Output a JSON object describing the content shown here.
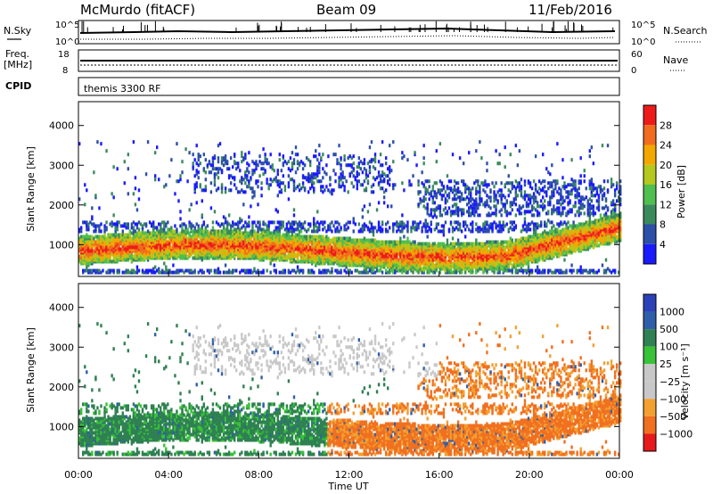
{
  "header": {
    "station": "McMurdo (fitACF)",
    "beam": "Beam 09",
    "date": "11/Feb/2016"
  },
  "panel_noise": {
    "left_label": "N.Sky",
    "right_label": "N.Search",
    "left_ticks": [
      "10^5",
      "10^0"
    ],
    "right_ticks": [
      "10^5",
      "10^0"
    ]
  },
  "panel_freq": {
    "left_label_1": "Freq.",
    "left_label_2": "[MHz]",
    "right_label": "Nave",
    "left_ticks": [
      "18",
      "8"
    ],
    "right_ticks": [
      "60",
      "0"
    ]
  },
  "panel_cpid": {
    "label": "CPID",
    "text": "themis 3300 RF"
  },
  "colors": {
    "power": [
      "#1a1aff",
      "#2c4fa8",
      "#3a8a5c",
      "#4fbf4f",
      "#b4c81e",
      "#f2a800",
      "#f06c1e",
      "#ee1a1a"
    ],
    "velocity": [
      "#e61a1a",
      "#f07020",
      "#f3a030",
      "#c8c8c8",
      "#c8c8c8",
      "#38c238",
      "#2f8052",
      "#2f5fa8",
      "#2a42b8"
    ]
  },
  "chart_data": [
    {
      "type": "heatmap",
      "quantity": "Power",
      "ylabel": "Slant Range [km]",
      "y_ticks": [
        "1000",
        "2000",
        "3000",
        "4000"
      ],
      "ylim": [
        200,
        4600
      ],
      "xlim": [
        0,
        24
      ],
      "colorbar": {
        "label": "Power [dB]",
        "ticks": [
          "4",
          "8",
          "12",
          "16",
          "20",
          "24",
          "28"
        ],
        "range": [
          0,
          32
        ]
      }
    },
    {
      "type": "heatmap",
      "quantity": "Velocity",
      "ylabel": "Slant Range [km]",
      "y_ticks": [
        "1000",
        "2000",
        "3000",
        "4000"
      ],
      "ylim": [
        200,
        4600
      ],
      "xlim": [
        0,
        24
      ],
      "xlabel": "Time UT",
      "x_ticks": [
        "00:00",
        "04:00",
        "08:00",
        "12:00",
        "16:00",
        "20:00",
        "00:00"
      ],
      "colorbar": {
        "label": "Velocity [m s⁻¹]",
        "ticks": [
          "1000",
          "500",
          "100",
          "25",
          "−25",
          "−100",
          "−500",
          "−1000"
        ]
      }
    }
  ]
}
